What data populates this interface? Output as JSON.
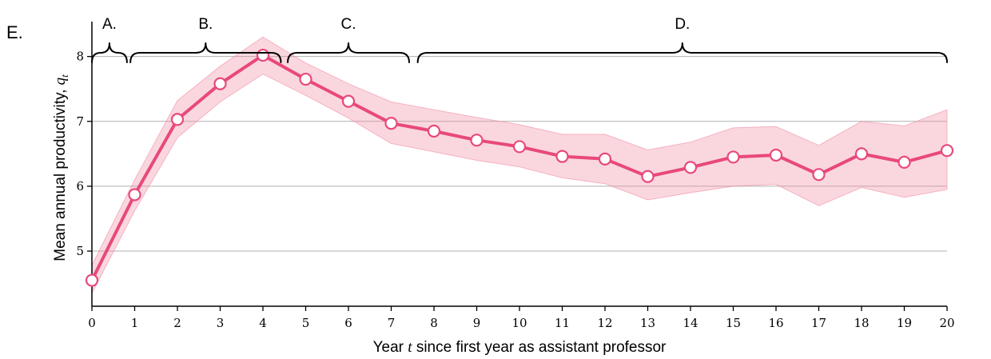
{
  "panel_label": "E.",
  "chart_data": {
    "type": "line",
    "xlabel_prefix": "Year ",
    "xlabel_var": "t",
    "xlabel_suffix": " since first year as assistant professor",
    "ylabel_text": "Mean annual productivity, ",
    "ylabel_var": "q",
    "ylabel_sub": "t",
    "xlim": [
      0,
      20
    ],
    "ylim": [
      4.15,
      8.6
    ],
    "x_ticks": [
      0,
      1,
      2,
      3,
      4,
      5,
      6,
      7,
      8,
      9,
      10,
      11,
      12,
      13,
      14,
      15,
      16,
      17,
      18,
      19,
      20
    ],
    "y_ticks": [
      5,
      6,
      7,
      8
    ],
    "grid": "horizontal",
    "colors": {
      "line": "#e8497a",
      "band": "#f28ca3"
    },
    "series": [
      {
        "x": [
          0,
          1,
          2,
          3,
          4,
          5,
          6,
          7,
          8,
          9,
          10,
          11,
          12,
          13,
          14,
          15,
          16,
          17,
          18,
          19,
          20
        ],
        "values": [
          4.55,
          5.87,
          7.03,
          7.58,
          8.02,
          7.65,
          7.31,
          6.97,
          6.85,
          6.71,
          6.61,
          6.46,
          6.42,
          6.15,
          6.29,
          6.45,
          6.48,
          6.18,
          6.5,
          6.37,
          6.55
        ],
        "lower": [
          4.35,
          5.62,
          6.75,
          7.3,
          7.73,
          7.4,
          7.05,
          6.66,
          6.53,
          6.4,
          6.3,
          6.13,
          6.04,
          5.79,
          5.9,
          6.0,
          6.03,
          5.7,
          5.98,
          5.83,
          5.95
        ],
        "upper": [
          4.78,
          6.1,
          7.32,
          7.85,
          8.3,
          7.9,
          7.58,
          7.3,
          7.18,
          7.06,
          6.95,
          6.8,
          6.8,
          6.56,
          6.68,
          6.9,
          6.92,
          6.63,
          7.0,
          6.93,
          7.18
        ]
      }
    ],
    "phases": [
      {
        "label": "A.",
        "from": 0,
        "to": 0.82
      },
      {
        "label": "B.",
        "from": 0.9,
        "to": 4.42
      },
      {
        "label": "C.",
        "from": 4.58,
        "to": 7.42
      },
      {
        "label": "D.",
        "from": 7.62,
        "to": 20
      }
    ]
  }
}
